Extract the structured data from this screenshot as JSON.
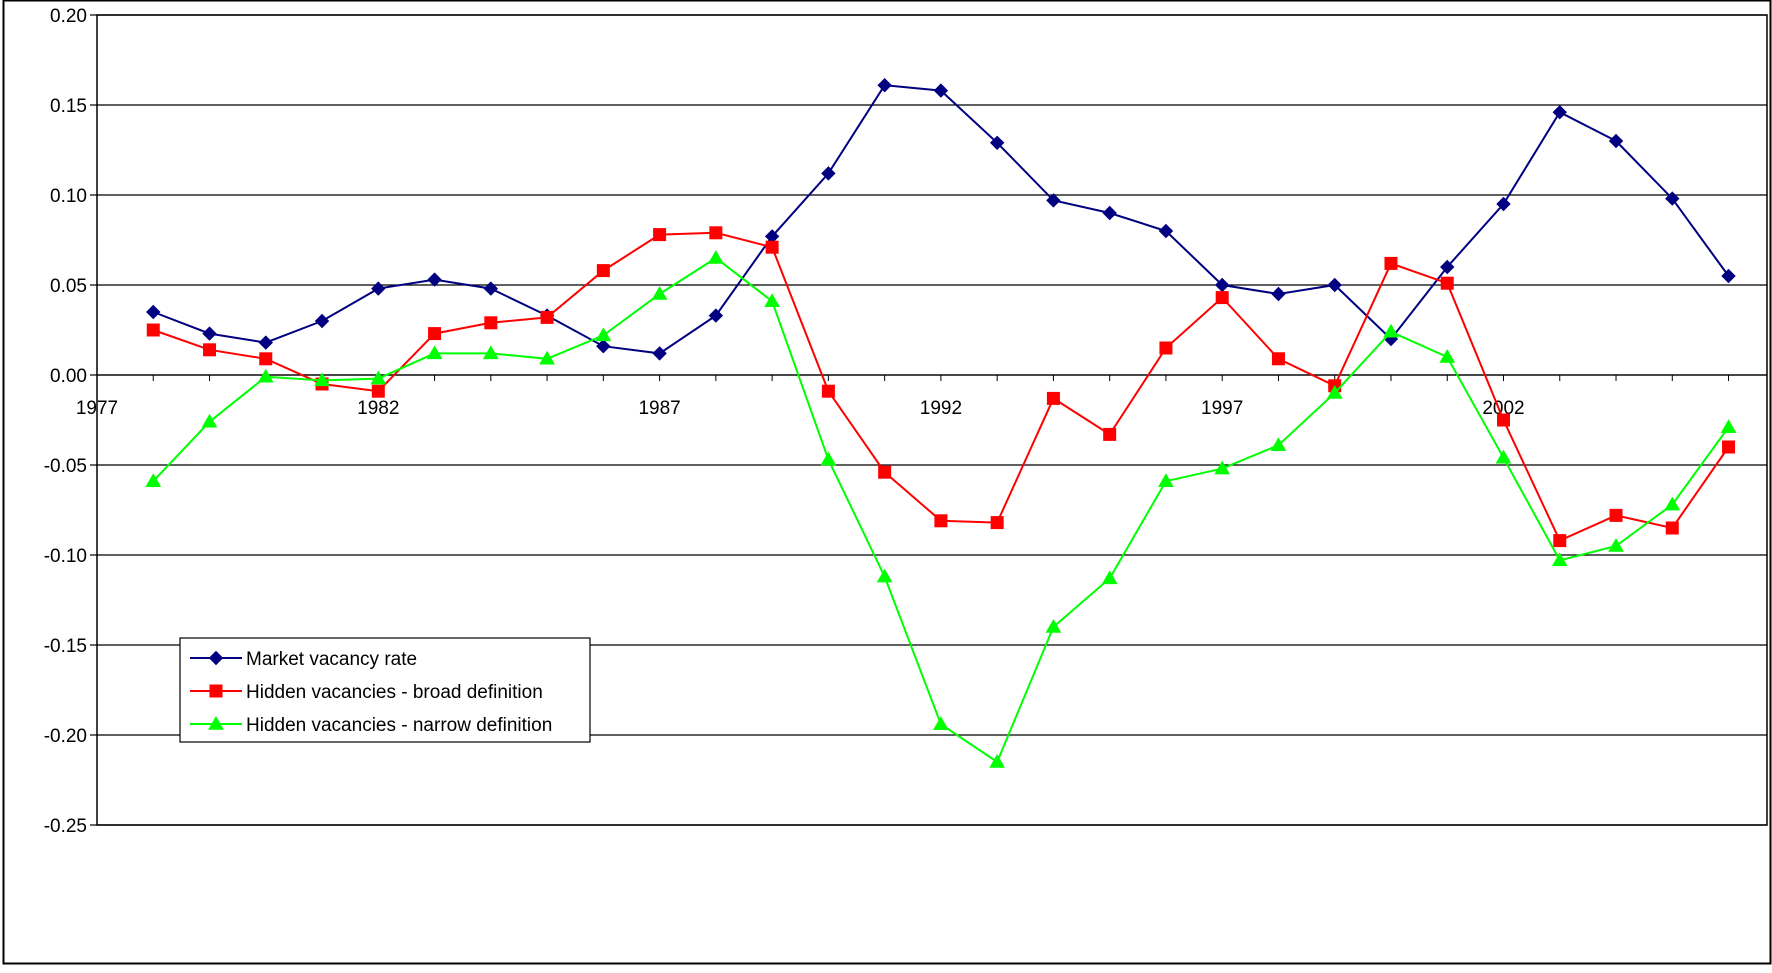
{
  "chart_data": {
    "type": "line",
    "title": "",
    "xlabel": "",
    "ylabel": "",
    "ylim": [
      -0.25,
      0.2
    ],
    "yticks": [
      "0.20",
      "0.15",
      "0.10",
      "0.05",
      "0.00",
      "-0.05",
      "-0.10",
      "-0.15",
      "-0.20",
      "-0.25"
    ],
    "xlim": [
      1977,
      2006.75
    ],
    "xticks": [
      "1977",
      "1982",
      "1987",
      "1992",
      "1997",
      "2002"
    ],
    "x": [
      1978,
      1979,
      1980,
      1981,
      1982,
      1983,
      1984,
      1985,
      1986,
      1987,
      1988,
      1989,
      1990,
      1991,
      1992,
      1993,
      1994,
      1995,
      1996,
      1997,
      1998,
      1999,
      2000,
      2001,
      2002,
      2003,
      2004,
      2005,
      2006
    ],
    "grid": true,
    "legend_position": "bottom-left",
    "series": [
      {
        "name": "Market vacancy rate",
        "color": "#000080",
        "marker": "diamond",
        "values": [
          0.035,
          0.023,
          0.018,
          0.03,
          0.048,
          0.053,
          0.048,
          0.033,
          0.016,
          0.012,
          0.033,
          0.077,
          0.112,
          0.161,
          0.158,
          0.129,
          0.097,
          0.09,
          0.08,
          0.05,
          0.045,
          0.05,
          0.02,
          0.06,
          0.095,
          0.146,
          0.13,
          0.098,
          0.055
        ]
      },
      {
        "name": "Hidden vacancies - broad definition",
        "color": "#ff0000",
        "marker": "square",
        "values": [
          0.025,
          0.014,
          0.009,
          -0.005,
          -0.009,
          0.023,
          0.029,
          0.032,
          0.058,
          0.078,
          0.079,
          0.071,
          -0.009,
          -0.054,
          -0.081,
          -0.082,
          -0.013,
          -0.033,
          0.015,
          0.043,
          0.009,
          -0.006,
          0.062,
          0.051,
          -0.025,
          -0.092,
          -0.078,
          -0.085,
          -0.04
        ]
      },
      {
        "name": "Hidden vacancies - narrow definition",
        "color": "#00ff00",
        "marker": "triangle",
        "values": [
          -0.059,
          -0.026,
          -0.001,
          -0.003,
          -0.002,
          0.012,
          0.012,
          0.009,
          0.022,
          0.045,
          0.065,
          0.041,
          -0.047,
          -0.112,
          -0.194,
          -0.215,
          -0.14,
          -0.113,
          -0.059,
          -0.052,
          -0.039,
          -0.01,
          0.024,
          0.01,
          -0.046,
          -0.103,
          -0.095,
          -0.072,
          -0.029
        ]
      }
    ]
  }
}
